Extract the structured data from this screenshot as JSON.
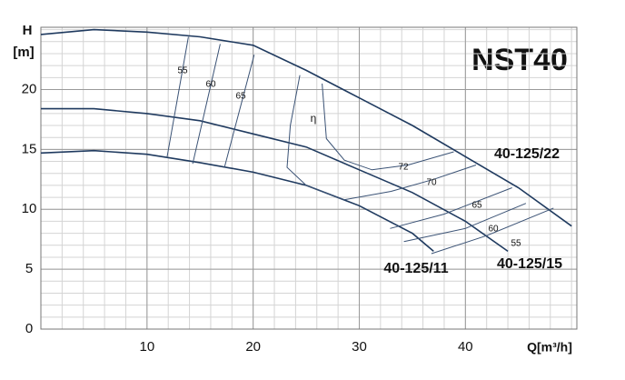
{
  "chart_data": {
    "type": "line",
    "title": "NST40",
    "y_label": "H",
    "y_unit": "[m]",
    "x_label": "Q[m³/h]",
    "efficiency_symbol": "η",
    "xlim": [
      0,
      50.5
    ],
    "ylim": [
      0,
      25.2
    ],
    "xticks": [
      10,
      20,
      30,
      40
    ],
    "yticks": [
      0,
      5,
      10,
      15,
      20
    ],
    "grid": true,
    "series": [
      {
        "name": "40-125/22",
        "color": "#1f3a5f",
        "role": "pump",
        "x": [
          0,
          5,
          10,
          15,
          20,
          25,
          30,
          35,
          40,
          45,
          50
        ],
        "values": [
          24.6,
          25.0,
          24.8,
          24.4,
          23.7,
          21.6,
          19.3,
          17.0,
          14.4,
          11.8,
          8.6
        ]
      },
      {
        "name": "40-125/15",
        "color": "#1f3a5f",
        "role": "pump",
        "x": [
          0,
          5,
          10,
          15,
          20,
          25,
          30,
          35,
          40,
          44
        ],
        "values": [
          18.4,
          18.4,
          18.0,
          17.4,
          16.3,
          15.2,
          13.3,
          11.4,
          9.0,
          6.5
        ]
      },
      {
        "name": "40-125/11",
        "color": "#1f3a5f",
        "role": "pump",
        "x": [
          0,
          5,
          10,
          15,
          20,
          25,
          30,
          35,
          37
        ],
        "values": [
          14.7,
          14.9,
          14.6,
          13.9,
          13.1,
          12.0,
          10.3,
          8.0,
          6.5
        ]
      },
      {
        "name": "55",
        "color": "#3a5275",
        "role": "efficiency",
        "x": [
          11.9,
          13.9,
          null,
          36.8,
          42,
          48.3
        ],
        "values": [
          14.4,
          24.4,
          null,
          6.3,
          7.8,
          10.1
        ]
      },
      {
        "name": "60",
        "color": "#3a5275",
        "role": "efficiency",
        "x": [
          14.3,
          16.9,
          null,
          34.2,
          40,
          45.7
        ],
        "values": [
          13.8,
          23.8,
          null,
          7.3,
          8.4,
          10.5
        ]
      },
      {
        "name": "65",
        "color": "#3a5275",
        "role": "efficiency",
        "x": [
          17.3,
          20.1,
          null,
          32.9,
          38,
          44.4
        ],
        "values": [
          13.5,
          22.9,
          null,
          8.4,
          9.6,
          11.8
        ]
      },
      {
        "name": "70",
        "color": "#3a5275",
        "role": "efficiency",
        "x": [
          24.4,
          23.5,
          23.2,
          25,
          28.6,
          33,
          37,
          41
        ],
        "values": [
          21.2,
          17,
          13.5,
          12,
          10.8,
          11.5,
          12.5,
          13.7
        ]
      },
      {
        "name": "72",
        "color": "#3a5275",
        "role": "efficiency",
        "x": [
          26.5,
          26.9,
          28.6,
          31.2,
          34.6,
          38.9
        ],
        "values": [
          20.5,
          15.9,
          14.1,
          13.3,
          13.7,
          14.8
        ]
      }
    ]
  }
}
